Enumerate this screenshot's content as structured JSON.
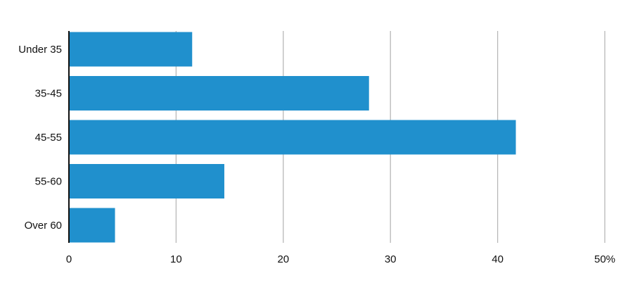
{
  "colors": {
    "bar": "#2090cd",
    "grid": "#b8b8b8",
    "axis": "#111111",
    "text": "#111111",
    "background": "#ffffff"
  },
  "chart_data": {
    "type": "bar",
    "orientation": "horizontal",
    "categories": [
      "Under 35",
      "35-45",
      "45-55",
      "55-60",
      "Over 60"
    ],
    "values": [
      11.5,
      28,
      41.7,
      14.5,
      4.3
    ],
    "xlim": [
      0,
      50
    ],
    "x_ticks": [
      0,
      10,
      20,
      30,
      40,
      50
    ],
    "x_tick_labels": [
      "0",
      "10",
      "20",
      "30",
      "40",
      "50%"
    ],
    "grid": true,
    "title": "",
    "xlabel": "",
    "ylabel": ""
  }
}
